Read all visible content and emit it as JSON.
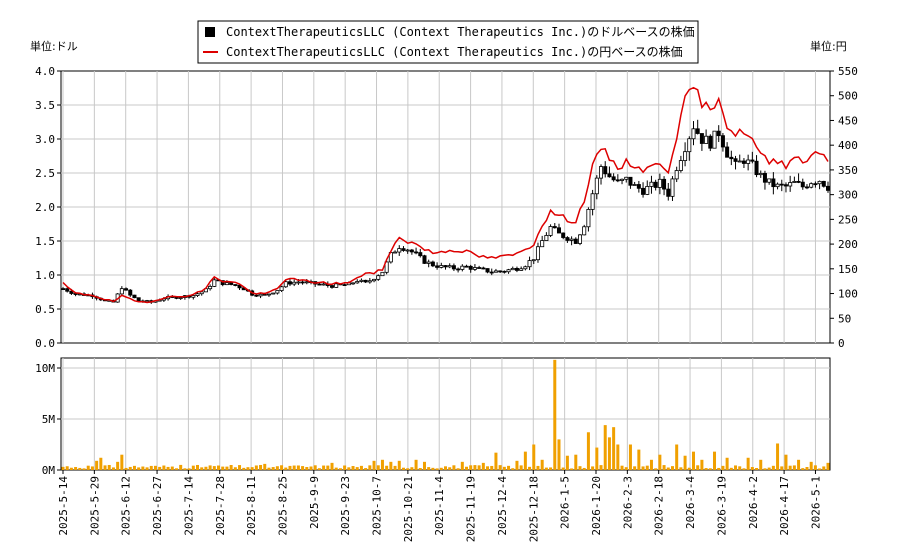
{
  "chart_data": {
    "type": "candlestick",
    "legend": [
      {
        "name": "ContextTherapeuticsLLC (Context Therapeutics Inc.)のドルベースの株価",
        "color": "#000000",
        "marker": "square"
      },
      {
        "name": "ContextTherapeuticsLLC (Context Therapeutics Inc.)の円ベースの株価",
        "color": "#dd0000",
        "marker": "line"
      }
    ],
    "legend_placement": "top-center",
    "left_unit": "単位:ドル",
    "right_unit": "単位:円",
    "price_axis_left": {
      "min": 0,
      "max": 4.0,
      "ticks": [
        "0.0",
        "0.5",
        "1.0",
        "1.5",
        "2.0",
        "2.5",
        "3.0",
        "3.5",
        "4.0"
      ]
    },
    "price_axis_right": {
      "min": 0,
      "max": 550,
      "ticks": [
        "0",
        "50",
        "100",
        "150",
        "200",
        "250",
        "300",
        "350",
        "400",
        "450",
        "500",
        "550"
      ]
    },
    "volume_axis": {
      "min": 0,
      "max": 10000000,
      "ticks": [
        "0M",
        "5M",
        "10M"
      ]
    },
    "x_ticks": [
      "2025-5-14",
      "2025-5-29",
      "2025-6-12",
      "2025-6-27",
      "2025-7-14",
      "2025-7-28",
      "2025-8-11",
      "2025-8-25",
      "2025-9-9",
      "2025-9-23",
      "2025-10-7",
      "2025-10-21",
      "2025-11-4",
      "2025-11-19",
      "2025-12-4",
      "2025-12-18",
      "2026-1-5",
      "2026-1-20",
      "2026-2-3",
      "2026-2-18",
      "2026-3-4",
      "2026-3-19",
      "2026-4-2",
      "2026-4-17",
      "2026-5-1"
    ],
    "grid": true,
    "usd_close_keypoints": [
      [
        0,
        0.8
      ],
      [
        3,
        0.72
      ],
      [
        7,
        0.7
      ],
      [
        10,
        0.62
      ],
      [
        12,
        0.6
      ],
      [
        14,
        0.82
      ],
      [
        16,
        0.7
      ],
      [
        18,
        0.62
      ],
      [
        21,
        0.6
      ],
      [
        24,
        0.66
      ],
      [
        28,
        0.68
      ],
      [
        31,
        0.7
      ],
      [
        34,
        0.78
      ],
      [
        36,
        0.92
      ],
      [
        38,
        0.88
      ],
      [
        41,
        0.85
      ],
      [
        43,
        0.8
      ],
      [
        45,
        0.72
      ],
      [
        48,
        0.7
      ],
      [
        51,
        0.78
      ],
      [
        53,
        0.88
      ],
      [
        56,
        0.9
      ],
      [
        60,
        0.87
      ],
      [
        64,
        0.84
      ],
      [
        68,
        0.86
      ],
      [
        70,
        0.92
      ],
      [
        72,
        0.88
      ],
      [
        74,
        0.96
      ],
      [
        76,
        1.05
      ],
      [
        78,
        1.3
      ],
      [
        80,
        1.42
      ],
      [
        82,
        1.38
      ],
      [
        84,
        1.3
      ],
      [
        86,
        1.2
      ],
      [
        88,
        1.15
      ],
      [
        90,
        1.12
      ],
      [
        93,
        1.1
      ],
      [
        96,
        1.12
      ],
      [
        99,
        1.08
      ],
      [
        102,
        1.05
      ],
      [
        105,
        1.06
      ],
      [
        108,
        1.1
      ],
      [
        110,
        1.15
      ],
      [
        112,
        1.25
      ],
      [
        114,
        1.5
      ],
      [
        116,
        1.7
      ],
      [
        118,
        1.6
      ],
      [
        120,
        1.55
      ],
      [
        122,
        1.5
      ],
      [
        124,
        1.75
      ],
      [
        126,
        2.2
      ],
      [
        128,
        2.6
      ],
      [
        130,
        2.45
      ],
      [
        132,
        2.35
      ],
      [
        134,
        2.4
      ],
      [
        136,
        2.3
      ],
      [
        138,
        2.25
      ],
      [
        140,
        2.3
      ],
      [
        142,
        2.35
      ],
      [
        144,
        2.2
      ],
      [
        146,
        2.6
      ],
      [
        148,
        2.9
      ],
      [
        150,
        3.2
      ],
      [
        152,
        3.0
      ],
      [
        154,
        2.95
      ],
      [
        156,
        3.1
      ],
      [
        158,
        2.8
      ],
      [
        160,
        2.6
      ],
      [
        162,
        2.7
      ],
      [
        164,
        2.6
      ],
      [
        166,
        2.45
      ],
      [
        168,
        2.35
      ],
      [
        170,
        2.3
      ],
      [
        172,
        2.3
      ],
      [
        174,
        2.35
      ],
      [
        176,
        2.3
      ],
      [
        178,
        2.38
      ],
      [
        180,
        2.4
      ],
      [
        182,
        2.3
      ]
    ],
    "jpy_close_keypoints": [
      [
        0,
        120
      ],
      [
        3,
        100
      ],
      [
        7,
        97
      ],
      [
        10,
        88
      ],
      [
        12,
        84
      ],
      [
        14,
        95
      ],
      [
        16,
        88
      ],
      [
        18,
        83
      ],
      [
        21,
        84
      ],
      [
        24,
        92
      ],
      [
        28,
        94
      ],
      [
        31,
        98
      ],
      [
        34,
        110
      ],
      [
        36,
        135
      ],
      [
        38,
        125
      ],
      [
        41,
        122
      ],
      [
        43,
        115
      ],
      [
        45,
        100
      ],
      [
        48,
        99
      ],
      [
        51,
        110
      ],
      [
        53,
        130
      ],
      [
        56,
        127
      ],
      [
        60,
        123
      ],
      [
        64,
        120
      ],
      [
        68,
        122
      ],
      [
        70,
        130
      ],
      [
        72,
        143
      ],
      [
        74,
        140
      ],
      [
        76,
        150
      ],
      [
        78,
        185
      ],
      [
        80,
        215
      ],
      [
        82,
        205
      ],
      [
        84,
        200
      ],
      [
        86,
        190
      ],
      [
        88,
        182
      ],
      [
        90,
        185
      ],
      [
        93,
        188
      ],
      [
        96,
        185
      ],
      [
        99,
        175
      ],
      [
        102,
        172
      ],
      [
        105,
        175
      ],
      [
        108,
        180
      ],
      [
        110,
        190
      ],
      [
        112,
        200
      ],
      [
        114,
        240
      ],
      [
        116,
        265
      ],
      [
        118,
        258
      ],
      [
        120,
        250
      ],
      [
        122,
        245
      ],
      [
        124,
        290
      ],
      [
        126,
        355
      ],
      [
        128,
        395
      ],
      [
        130,
        375
      ],
      [
        132,
        355
      ],
      [
        134,
        365
      ],
      [
        136,
        360
      ],
      [
        138,
        350
      ],
      [
        140,
        355
      ],
      [
        142,
        365
      ],
      [
        144,
        350
      ],
      [
        146,
        420
      ],
      [
        148,
        490
      ],
      [
        150,
        520
      ],
      [
        152,
        485
      ],
      [
        154,
        470
      ],
      [
        156,
        500
      ],
      [
        158,
        440
      ],
      [
        160,
        420
      ],
      [
        162,
        430
      ],
      [
        164,
        410
      ],
      [
        166,
        380
      ],
      [
        168,
        365
      ],
      [
        170,
        370
      ],
      [
        172,
        360
      ],
      [
        174,
        380
      ],
      [
        176,
        365
      ],
      [
        178,
        380
      ],
      [
        180,
        390
      ],
      [
        182,
        370
      ]
    ],
    "volume_spikes_millions": [
      [
        8,
        0.9
      ],
      [
        9,
        1.2
      ],
      [
        13,
        0.8
      ],
      [
        14,
        1.5
      ],
      [
        28,
        0.5
      ],
      [
        35,
        0.45
      ],
      [
        48,
        0.6
      ],
      [
        64,
        0.7
      ],
      [
        74,
        0.9
      ],
      [
        76,
        1.0
      ],
      [
        78,
        0.8
      ],
      [
        80,
        0.9
      ],
      [
        84,
        1.0
      ],
      [
        86,
        0.8
      ],
      [
        95,
        0.8
      ],
      [
        100,
        0.7
      ],
      [
        103,
        1.7
      ],
      [
        108,
        0.9
      ],
      [
        110,
        1.8
      ],
      [
        112,
        2.5
      ],
      [
        114,
        1.0
      ],
      [
        117,
        10.8
      ],
      [
        118,
        3.0
      ],
      [
        120,
        1.4
      ],
      [
        122,
        1.5
      ],
      [
        125,
        3.7
      ],
      [
        127,
        2.2
      ],
      [
        129,
        4.4
      ],
      [
        130,
        3.2
      ],
      [
        131,
        4.2
      ],
      [
        132,
        2.5
      ],
      [
        135,
        2.5
      ],
      [
        137,
        2.0
      ],
      [
        140,
        1.0
      ],
      [
        142,
        1.5
      ],
      [
        146,
        2.5
      ],
      [
        148,
        1.4
      ],
      [
        150,
        1.8
      ],
      [
        152,
        1.0
      ],
      [
        155,
        1.8
      ],
      [
        158,
        1.2
      ],
      [
        163,
        1.2
      ],
      [
        166,
        1.0
      ],
      [
        170,
        2.6
      ],
      [
        172,
        1.5
      ],
      [
        175,
        1.0
      ],
      [
        178,
        0.8
      ],
      [
        182,
        0.7
      ]
    ],
    "series_count": 183
  }
}
